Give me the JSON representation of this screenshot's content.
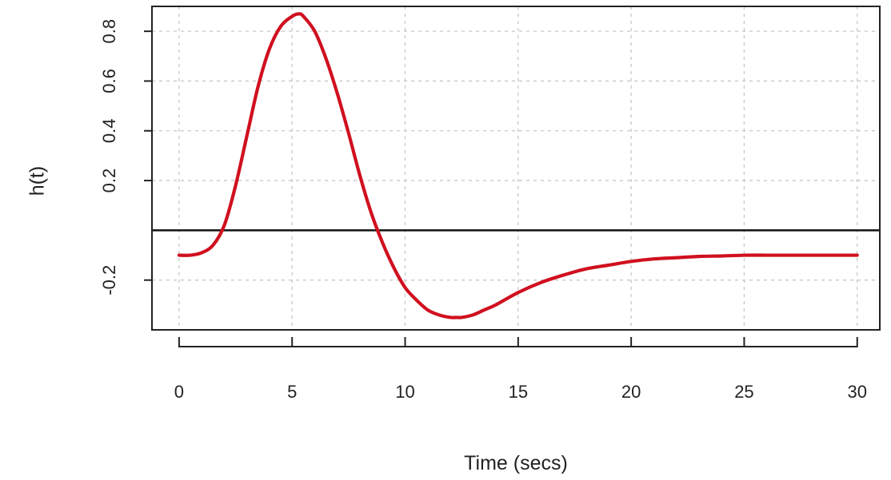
{
  "chart_data": {
    "type": "line",
    "title": "",
    "xlabel": "Time (secs)",
    "ylabel": "h(t)",
    "xlim": [
      -1.2,
      31.0
    ],
    "ylim": [
      -0.4,
      0.9
    ],
    "xticks": [
      0,
      5,
      10,
      15,
      20,
      25,
      30
    ],
    "xtick_labels": [
      "0",
      "5",
      "10",
      "15",
      "20",
      "25",
      "30"
    ],
    "yticks": [
      -0.2,
      0.2,
      0.4,
      0.6,
      0.8
    ],
    "ytick_labels": [
      "-0.2",
      "0.2",
      "0.4",
      "0.6",
      "0.8"
    ],
    "grid": true,
    "grid_style": "dotted",
    "hline": 0,
    "line_color": "#d0101f",
    "series": [
      {
        "x": [
          0,
          0.5,
          1.0,
          1.5,
          2.0,
          2.5,
          3.0,
          3.5,
          4.0,
          4.5,
          5.0,
          5.3,
          5.5,
          6.0,
          6.5,
          7.0,
          7.5,
          8.0,
          8.5,
          9.0,
          9.5,
          10.0,
          10.5,
          11.0,
          11.5,
          12.0,
          12.3,
          12.5,
          13.0,
          13.5,
          14.0,
          15.0,
          16.0,
          17.0,
          18.0,
          19.0,
          20.0,
          21.0,
          22.0,
          23.0,
          24.0,
          25.0,
          26.0,
          27.0,
          28.0,
          29.0,
          30.0
        ],
        "y": [
          -0.1,
          -0.1,
          -0.09,
          -0.06,
          0.02,
          0.18,
          0.38,
          0.58,
          0.73,
          0.82,
          0.86,
          0.87,
          0.86,
          0.8,
          0.69,
          0.55,
          0.39,
          0.22,
          0.07,
          -0.05,
          -0.15,
          -0.23,
          -0.28,
          -0.32,
          -0.34,
          -0.35,
          -0.35,
          -0.35,
          -0.34,
          -0.32,
          -0.3,
          -0.25,
          -0.21,
          -0.18,
          -0.155,
          -0.14,
          -0.125,
          -0.115,
          -0.11,
          -0.105,
          -0.103,
          -0.1,
          -0.1,
          -0.1,
          -0.1,
          -0.1,
          -0.1
        ]
      }
    ]
  }
}
